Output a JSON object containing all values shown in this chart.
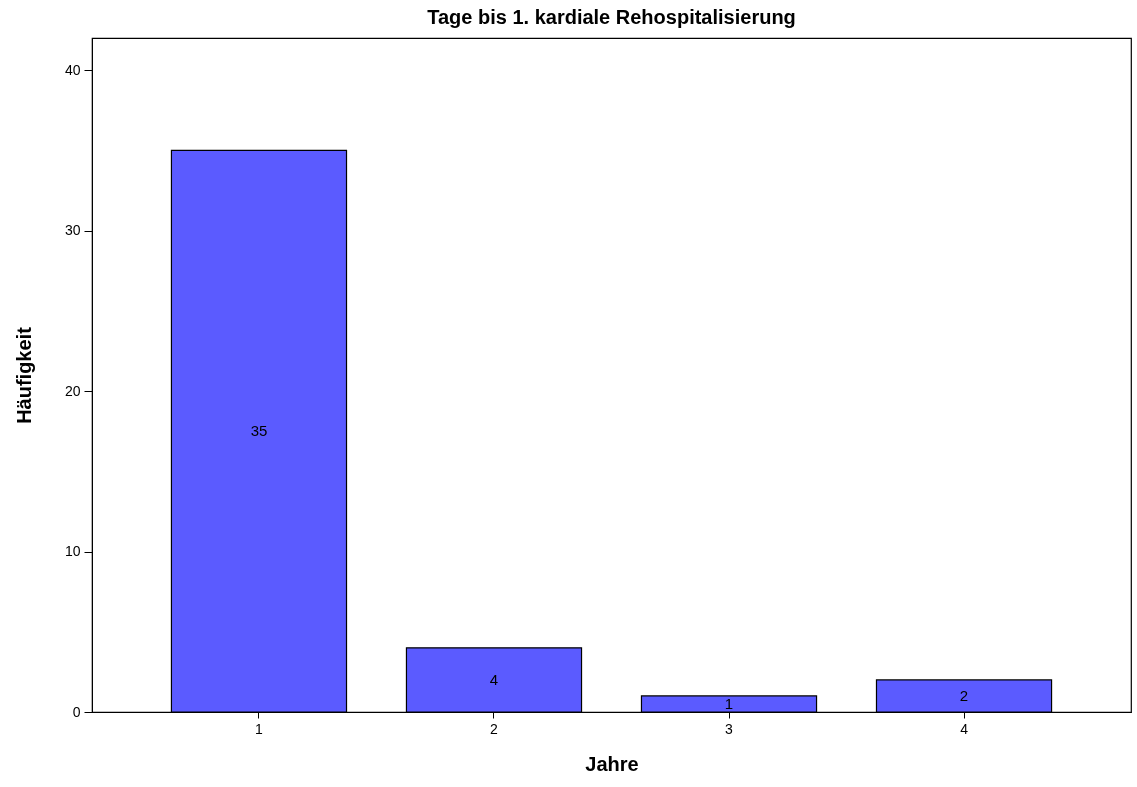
{
  "chart_data": {
    "type": "bar",
    "title": "Tage bis 1. kardiale Rehospitalisierung",
    "xlabel": "Jahre",
    "ylabel": "Häufigkeit",
    "categories": [
      "1",
      "2",
      "3",
      "4"
    ],
    "values": [
      35,
      4,
      1,
      2
    ],
    "color": "#5b5bff",
    "ylim": [
      0,
      42
    ],
    "yticks": [
      0,
      10,
      20,
      30,
      40
    ],
    "grid": false,
    "data_labels": true
  }
}
